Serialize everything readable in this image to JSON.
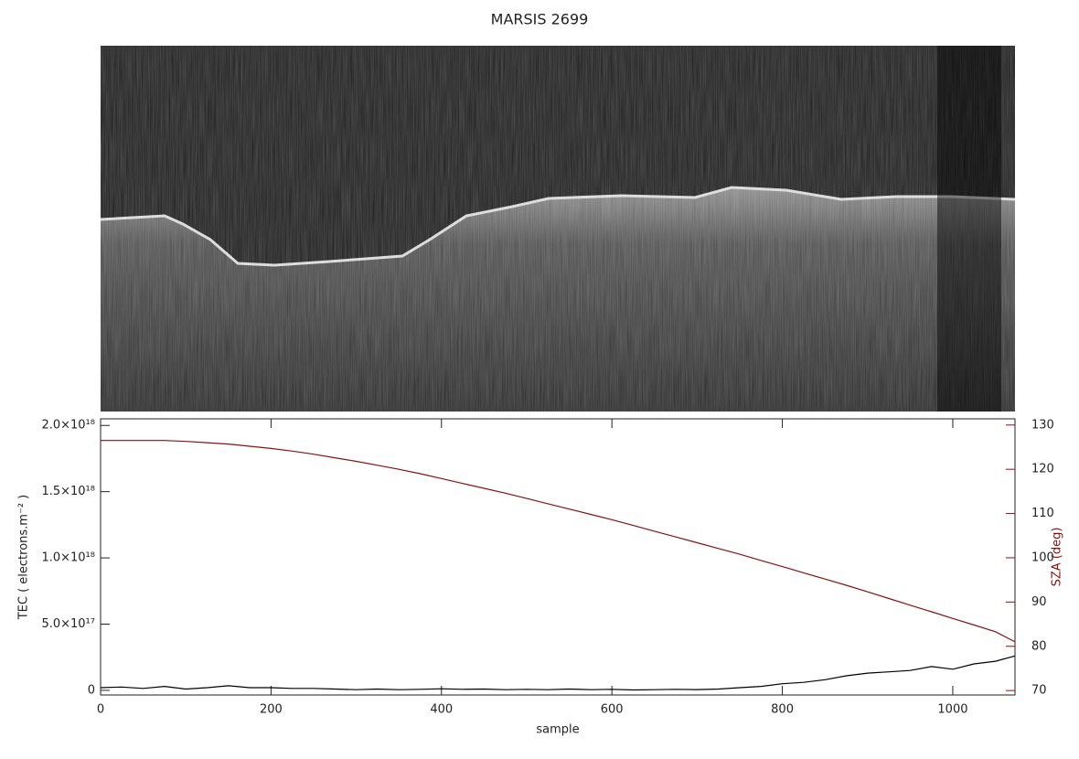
{
  "chart_data": {
    "type": "line",
    "title": "MARSIS 2699",
    "x_label": "sample",
    "y_label": "TEC ( electrons.m⁻² )",
    "y2_label": "SZA (deg)",
    "xlim": [
      0,
      1073
    ],
    "xticks": [
      0,
      200,
      400,
      600,
      800,
      1000
    ],
    "ylim": [
      -35000000000000000,
      2050000000000000000
    ],
    "yticks": [
      0,
      {
        "value": 500000000000000000,
        "label": "5.0×10¹⁷"
      },
      {
        "value": 1000000000000000000,
        "label": "1.0×10¹⁸"
      },
      {
        "value": 1500000000000000000,
        "label": "1.5×10¹⁸"
      },
      {
        "value": 2000000000000000000,
        "label": "2.0×10¹⁸"
      }
    ],
    "y2lim": [
      69,
      131.4
    ],
    "y2ticks": [
      70,
      80,
      90,
      100,
      110,
      120,
      130
    ],
    "x": [
      0,
      25,
      50,
      75,
      100,
      125,
      150,
      175,
      200,
      225,
      250,
      275,
      300,
      325,
      350,
      375,
      400,
      425,
      450,
      475,
      500,
      525,
      550,
      575,
      600,
      625,
      650,
      675,
      700,
      725,
      750,
      775,
      800,
      825,
      850,
      875,
      900,
      925,
      950,
      975,
      1000,
      1025,
      1050,
      1073
    ],
    "series": [
      {
        "name": "TEC",
        "color": "#000000",
        "values": [
          2e+16,
          2.5e+16,
          1.5e+16,
          3e+16,
          1e+16,
          2e+16,
          3.5e+16,
          2e+16,
          2e+16,
          1.5e+16,
          1.5e+16,
          1e+16,
          5000000000000000.0,
          1e+16,
          5000000000000000.0,
          8000000000000000.0,
          1.2e+16,
          8000000000000000.0,
          1e+16,
          5000000000000000.0,
          8000000000000000.0,
          5000000000000000.0,
          1e+16,
          5000000000000000.0,
          8000000000000000.0,
          3000000000000000.0,
          5000000000000000.0,
          8000000000000000.0,
          6000000000000000.0,
          1e+16,
          2e+16,
          3e+16,
          5e+16,
          6e+16,
          8e+16,
          1.1e+17,
          1.3e+17,
          1.4e+17,
          1.5e+17,
          1.8e+17,
          1.6e+17,
          2e+17,
          2.2e+17,
          2.6e+17
        ]
      },
      {
        "name": "SZA",
        "color": "#8b1010",
        "axis": "y2",
        "values": [
          126.5,
          126.5,
          126.5,
          126.5,
          126.3,
          126,
          125.7,
          125.2,
          124.7,
          124.1,
          123.4,
          122.6,
          121.8,
          120.9,
          120,
          119,
          117.9,
          116.8,
          115.7,
          114.6,
          113.4,
          112.2,
          111,
          109.8,
          108.6,
          107.3,
          106,
          104.7,
          103.4,
          102.1,
          100.8,
          99.4,
          98,
          96.6,
          95.2,
          93.8,
          92.3,
          90.8,
          89.3,
          87.8,
          86.3,
          84.8,
          83.3,
          81
        ]
      }
    ]
  }
}
